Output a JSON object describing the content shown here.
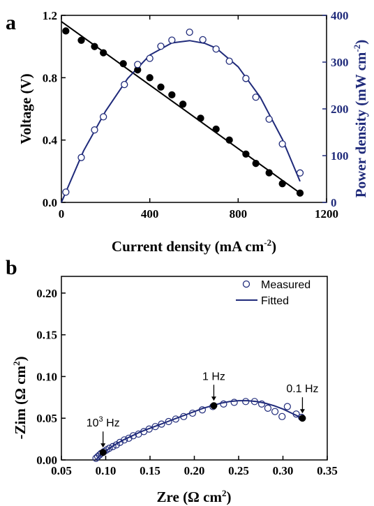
{
  "colors": {
    "black": "#000000",
    "navy": "#1f2a7a"
  },
  "chart_data": [
    {
      "panel_label": "a",
      "type": "scatter",
      "xlabel": {
        "main": "Current density (mA cm",
        "sup": "-2",
        "tail": ")"
      },
      "ylabel": "Voltage (V)",
      "y2label": {
        "main": "Power density (mW cm",
        "sup": "-2",
        "tail": ")"
      },
      "xlim": [
        0,
        1200
      ],
      "ylim": [
        0,
        1.2
      ],
      "y2lim": [
        0,
        400
      ],
      "xticks": [
        0,
        400,
        800,
        1200
      ],
      "xtick_labels": [
        "0",
        "400",
        "800",
        "1200"
      ],
      "yticks": [
        0,
        0.4,
        0.8,
        1.2
      ],
      "ytick_labels": [
        "0.0",
        "0.4",
        "0.8",
        "1.2"
      ],
      "y2ticks": [
        0,
        100,
        200,
        300,
        400
      ],
      "y2tick_labels": [
        "0",
        "100",
        "200",
        "300",
        "400"
      ],
      "series": [
        {
          "axis": "left",
          "marker": "filled-circle",
          "color": "#000000",
          "x": [
            20,
            90,
            150,
            190,
            280,
            345,
            400,
            450,
            500,
            550,
            630,
            700,
            760,
            835,
            880,
            940,
            1000,
            1080
          ],
          "y": [
            1.1,
            1.04,
            1.0,
            0.96,
            0.89,
            0.85,
            0.8,
            0.74,
            0.69,
            0.63,
            0.54,
            0.47,
            0.4,
            0.31,
            0.25,
            0.19,
            0.12,
            0.06
          ]
        },
        {
          "axis": "left",
          "marker": "line",
          "color": "#000000",
          "x": [
            0,
            1080
          ],
          "y": [
            1.16,
            0.06
          ]
        },
        {
          "axis": "right",
          "marker": "open-circle",
          "color": "#1f2a7a",
          "x": [
            20,
            90,
            150,
            190,
            285,
            345,
            400,
            450,
            500,
            580,
            640,
            700,
            760,
            835,
            880,
            940,
            1000,
            1080
          ],
          "y": [
            22,
            96,
            155,
            183,
            252,
            295,
            308,
            334,
            347,
            364,
            348,
            328,
            302,
            265,
            225,
            178,
            125,
            63
          ]
        },
        {
          "axis": "right",
          "marker": "line",
          "color": "#1f2a7a",
          "x": [
            0,
            100,
            200,
            300,
            400,
            500,
            580,
            650,
            700,
            800,
            900,
            1000,
            1080
          ],
          "y": [
            0,
            110,
            195,
            265,
            315,
            341,
            346,
            340,
            330,
            290,
            225,
            135,
            45
          ]
        }
      ]
    },
    {
      "panel_label": "b",
      "type": "scatter",
      "xlabel": {
        "main": "Zre (Ω cm",
        "sup": "2",
        "tail": ")"
      },
      "ylabel": {
        "main": "-Zim (Ω cm",
        "sup": "2",
        "tail": ")"
      },
      "xlim": [
        0.05,
        0.35
      ],
      "ylim": [
        0,
        0.22
      ],
      "xticks": [
        0.05,
        0.1,
        0.15,
        0.2,
        0.25,
        0.3,
        0.35
      ],
      "xtick_labels": [
        "0.05",
        "0.10",
        "0.15",
        "0.20",
        "0.25",
        "0.30",
        "0.35"
      ],
      "yticks": [
        0,
        0.05,
        0.1,
        0.15,
        0.2
      ],
      "ytick_labels": [
        "0.00",
        "0.05",
        "0.10",
        "0.15",
        "0.20"
      ],
      "legend": {
        "placement": "top-right",
        "entries": [
          "Measured",
          "Fitted"
        ]
      },
      "series": [
        {
          "name": "Measured",
          "marker": "open-circle",
          "color": "#1f2a7a",
          "x": [
            0.089,
            0.091,
            0.093,
            0.095,
            0.098,
            0.101,
            0.104,
            0.108,
            0.112,
            0.116,
            0.121,
            0.126,
            0.131,
            0.137,
            0.143,
            0.149,
            0.156,
            0.163,
            0.171,
            0.179,
            0.188,
            0.198,
            0.209,
            0.221,
            0.233,
            0.245,
            0.258,
            0.268,
            0.276,
            0.283,
            0.291,
            0.299,
            0.305,
            0.315,
            0.321
          ],
          "y": [
            0.002,
            0.004,
            0.006,
            0.008,
            0.01,
            0.012,
            0.014,
            0.016,
            0.018,
            0.021,
            0.024,
            0.026,
            0.029,
            0.031,
            0.034,
            0.037,
            0.04,
            0.043,
            0.046,
            0.049,
            0.052,
            0.056,
            0.06,
            0.064,
            0.067,
            0.069,
            0.07,
            0.07,
            0.067,
            0.062,
            0.058,
            0.052,
            0.064,
            0.055,
            0.051
          ]
        },
        {
          "name": "Fitted",
          "marker": "line",
          "color": "#1f2a7a",
          "x": [
            0.089,
            0.095,
            0.1,
            0.11,
            0.12,
            0.13,
            0.14,
            0.15,
            0.16,
            0.17,
            0.18,
            0.19,
            0.2,
            0.21,
            0.22,
            0.23,
            0.24,
            0.25,
            0.26,
            0.27,
            0.28,
            0.29,
            0.3,
            0.31,
            0.322
          ],
          "y": [
            0.0,
            0.007,
            0.011,
            0.018,
            0.024,
            0.029,
            0.034,
            0.038,
            0.042,
            0.046,
            0.05,
            0.054,
            0.058,
            0.062,
            0.065,
            0.068,
            0.07,
            0.071,
            0.071,
            0.07,
            0.068,
            0.065,
            0.061,
            0.056,
            0.05
          ]
        }
      ],
      "highlighted_points": [
        {
          "x": 0.097,
          "y": 0.009,
          "label_base": "10",
          "label_sup": "3",
          "label_tail": " Hz"
        },
        {
          "x": 0.222,
          "y": 0.065,
          "label_base": "1 Hz",
          "label_sup": "",
          "label_tail": ""
        },
        {
          "x": 0.322,
          "y": 0.05,
          "label_base": "0.1 Hz",
          "label_sup": "",
          "label_tail": ""
        }
      ]
    }
  ]
}
